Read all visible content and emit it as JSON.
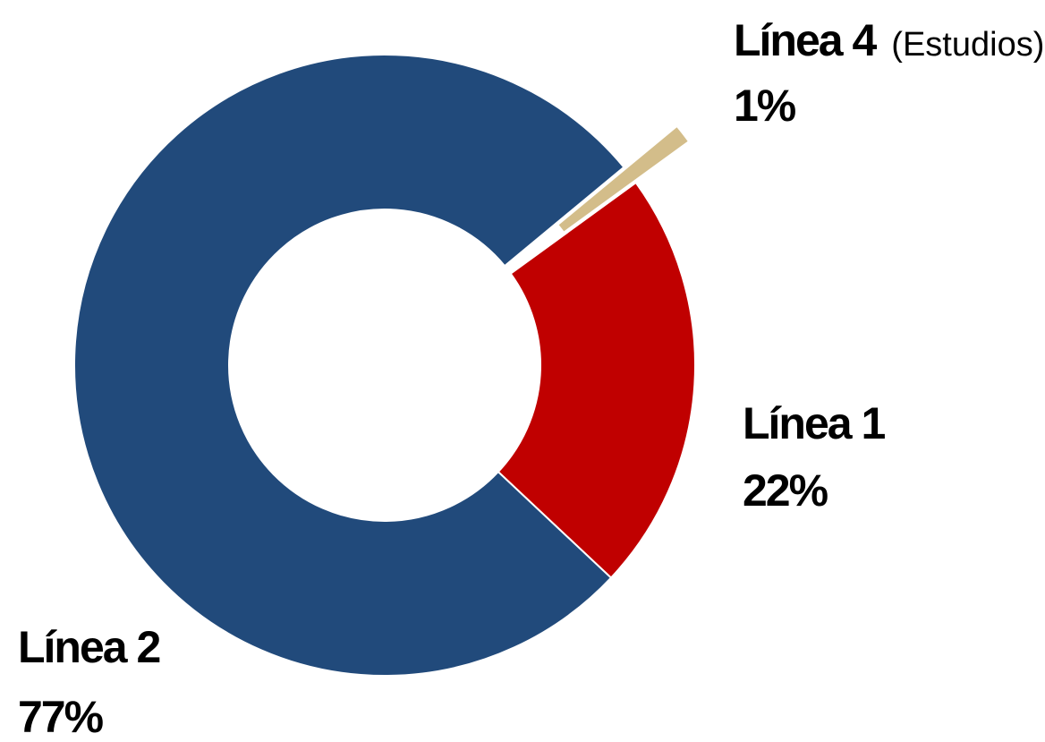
{
  "chart_data": {
    "type": "donut",
    "categories": [
      "Línea 1",
      "Línea 2",
      "Línea 4"
    ],
    "category_notes": [
      null,
      null,
      "(Estudios)"
    ],
    "values": [
      22,
      77,
      1
    ],
    "value_labels": [
      "22%",
      "77%",
      "1%"
    ],
    "colors": [
      "#c00000",
      "#214a7b",
      "#d3bd8a"
    ],
    "explode": [
      false,
      false,
      true
    ]
  }
}
